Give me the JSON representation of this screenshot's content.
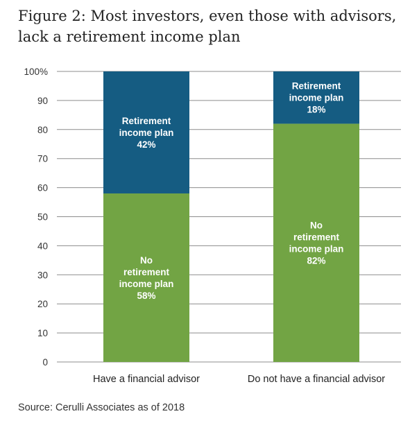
{
  "figure": {
    "title": "Figure 2: Most investors, even those with advisors, lack a retirement income plan",
    "source": "Source: Cerulli Associates as of 2018"
  },
  "colors": {
    "no_plan": "#72a444",
    "plan": "#155c82",
    "grid": "#8c8c8c",
    "text": "#222222"
  },
  "chart_data": {
    "type": "bar",
    "stacked": true,
    "categories": [
      "Have a financial advisor",
      "Do not have a financial advisor"
    ],
    "series": [
      {
        "name": "No retirement income plan",
        "values": [
          58,
          82
        ],
        "labels": [
          [
            "No",
            "retirement",
            "income plan",
            "58%"
          ],
          [
            "No",
            "retirement",
            "income plan",
            "82%"
          ]
        ]
      },
      {
        "name": "Retirement income plan",
        "values": [
          42,
          18
        ],
        "labels": [
          [
            "Retirement",
            "income plan",
            "42%"
          ],
          [
            "Retirement",
            "income plan",
            "18%"
          ]
        ]
      }
    ],
    "ylim": [
      0,
      100
    ],
    "yticks": [
      0,
      10,
      20,
      30,
      40,
      50,
      60,
      70,
      80,
      90,
      100
    ],
    "ytick_labels": [
      "0",
      "10",
      "20",
      "30",
      "40",
      "50",
      "60",
      "70",
      "80",
      "90",
      "100%"
    ],
    "grid": true,
    "legend": "none",
    "xlabel": "",
    "ylabel": ""
  }
}
